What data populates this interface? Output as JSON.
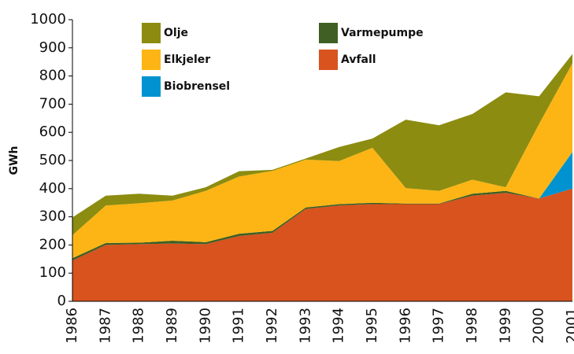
{
  "chart_data": {
    "type": "stacked_area",
    "y_label": "GWh",
    "categories": [
      "1986",
      "1987",
      "1988",
      "1989",
      "1990",
      "1991",
      "1992",
      "1993",
      "1994",
      "1995",
      "1996",
      "1997",
      "1998",
      "1999",
      "2000",
      "2001"
    ],
    "series": [
      {
        "name": "Avfall",
        "color": "#d9531e",
        "values": [
          145,
          200,
          203,
          205,
          203,
          232,
          243,
          328,
          340,
          345,
          345,
          345,
          375,
          385,
          365,
          400
        ]
      },
      {
        "name": "Varmepumpe",
        "color": "#3f5f24",
        "values": [
          8,
          7,
          5,
          10,
          7,
          8,
          7,
          5,
          5,
          5,
          2,
          2,
          7,
          7,
          0,
          0
        ]
      },
      {
        "name": "Biobrensel",
        "color": "#0093d0",
        "values": [
          0,
          0,
          0,
          0,
          0,
          0,
          0,
          0,
          0,
          0,
          0,
          0,
          0,
          0,
          0,
          130
        ]
      },
      {
        "name": "Elkjeler",
        "color": "#fdb515",
        "values": [
          82,
          133,
          140,
          143,
          182,
          203,
          213,
          170,
          153,
          195,
          55,
          45,
          50,
          13,
          265,
          315
        ]
      },
      {
        "name": "Olje",
        "color": "#8c8c10",
        "values": [
          63,
          35,
          34,
          17,
          13,
          19,
          4,
          4,
          50,
          33,
          243,
          233,
          233,
          337,
          98,
          33
        ]
      }
    ],
    "ylim": [
      0,
      1000
    ],
    "yticks": [
      0,
      100,
      200,
      300,
      400,
      500,
      600,
      700,
      800,
      900,
      1000
    ]
  }
}
